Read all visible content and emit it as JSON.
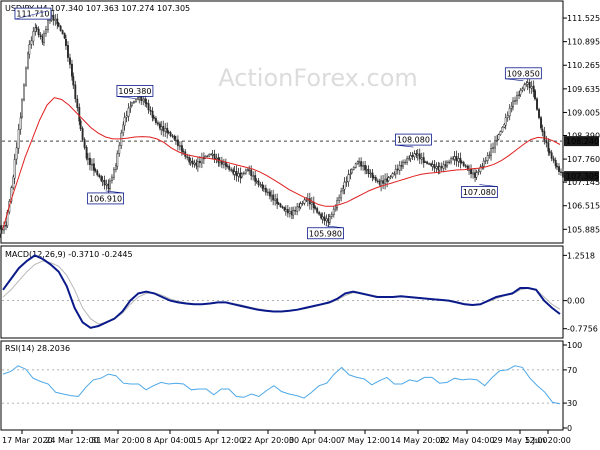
{
  "watermark": "ActionForex.com",
  "chart_data": [
    {
      "type": "candlestick",
      "title": "USDJPY,H4  107.340 107.363 107.274 107.305",
      "ylim": [
        105.6,
        111.9
      ],
      "y_ticks": [
        111.525,
        110.895,
        110.265,
        109.635,
        109.005,
        108.39,
        107.76,
        107.145,
        106.515,
        105.885
      ],
      "y_tick_labels": [
        "111.525",
        "110.895",
        "110.265",
        "109.635",
        "109.005",
        "108.390",
        "107.760",
        "107.145",
        "106.515",
        "105.885"
      ],
      "highlight_labels": [
        "108.240",
        "107.305"
      ],
      "reference_level": 108.24,
      "last_price": 107.305,
      "close": [
        106.0,
        107.3,
        108.9,
        110.6,
        111.3,
        110.9,
        111.6,
        111.4,
        111.0,
        110.0,
        108.8,
        107.8,
        107.5,
        107.2,
        107.0,
        107.6,
        108.7,
        109.2,
        109.4,
        109.3,
        108.9,
        108.6,
        108.5,
        108.3,
        108.0,
        107.7,
        107.6,
        107.8,
        107.9,
        107.7,
        107.6,
        107.4,
        107.3,
        107.5,
        107.2,
        107.0,
        106.8,
        106.6,
        106.4,
        106.3,
        106.5,
        106.7,
        106.5,
        106.2,
        106.1,
        106.5,
        107.0,
        107.4,
        107.7,
        107.5,
        107.3,
        107.1,
        107.2,
        107.4,
        107.6,
        107.8,
        107.9,
        107.7,
        107.6,
        107.5,
        107.6,
        107.8,
        107.7,
        107.5,
        107.3,
        107.6,
        107.9,
        108.3,
        108.7,
        109.2,
        109.5,
        109.8,
        109.6,
        108.6,
        108.0,
        107.6,
        107.3
      ],
      "ma": [
        105.9,
        106.6,
        107.2,
        107.8,
        108.3,
        108.8,
        109.2,
        109.4,
        109.35,
        109.2,
        109.0,
        108.8,
        108.6,
        108.45,
        108.35,
        108.3,
        108.3,
        108.32,
        108.35,
        108.36,
        108.35,
        108.3,
        108.2,
        108.05,
        107.95,
        107.88,
        107.84,
        107.8,
        107.78,
        107.75,
        107.7,
        107.65,
        107.6,
        107.55,
        107.5,
        107.42,
        107.32,
        107.2,
        107.08,
        106.95,
        106.85,
        106.75,
        106.65,
        106.55,
        106.5,
        106.5,
        106.55,
        106.62,
        106.72,
        106.82,
        106.92,
        107.0,
        107.06,
        107.12,
        107.18,
        107.24,
        107.3,
        107.35,
        107.38,
        107.4,
        107.42,
        107.45,
        107.47,
        107.48,
        107.5,
        107.52,
        107.56,
        107.62,
        107.72,
        107.85,
        108.0,
        108.15,
        108.28,
        108.34,
        108.32,
        108.25,
        108.15
      ],
      "annotations": [
        {
          "text": "111.710",
          "price": 111.71,
          "index": 6
        },
        {
          "text": "109.380",
          "price": 109.38,
          "index": 18
        },
        {
          "text": "106.910",
          "price": 106.91,
          "index": 14
        },
        {
          "text": "105.980",
          "price": 105.98,
          "index": 44
        },
        {
          "text": "108.080",
          "price": 108.08,
          "index": 56
        },
        {
          "text": "107.080",
          "price": 107.08,
          "index": 65
        },
        {
          "text": "109.850",
          "price": 109.85,
          "index": 71
        }
      ]
    },
    {
      "type": "line",
      "title": "MACD(12,26,9)  -0.3710  -0.2445",
      "ylim": [
        -0.95,
        1.4
      ],
      "y_ticks": [
        1.2518,
        0.0,
        -0.7756
      ],
      "y_tick_labels": [
        "1.2518",
        "0.00",
        "-0.7756"
      ],
      "series": [
        {
          "values": [
            0.3,
            0.6,
            0.9,
            1.1,
            1.25,
            1.15,
            1.0,
            0.8,
            0.4,
            -0.2,
            -0.6,
            -0.75,
            -0.7,
            -0.6,
            -0.5,
            -0.3,
            0.0,
            0.2,
            0.25,
            0.2,
            0.1,
            0.0,
            -0.05,
            -0.08,
            -0.1,
            -0.1,
            -0.08,
            -0.05,
            -0.05,
            -0.1,
            -0.15,
            -0.2,
            -0.25,
            -0.28,
            -0.3,
            -0.3,
            -0.28,
            -0.25,
            -0.2,
            -0.15,
            -0.1,
            -0.05,
            0.05,
            0.2,
            0.25,
            0.2,
            0.15,
            0.1,
            0.1,
            0.1,
            0.12,
            0.1,
            0.08,
            0.06,
            0.04,
            0.02,
            0.0,
            -0.05,
            -0.1,
            -0.12,
            -0.1,
            0.0,
            0.1,
            0.15,
            0.2,
            0.35,
            0.35,
            0.3,
            0.0,
            -0.2,
            -0.37
          ]
        },
        {
          "values": [
            0.1,
            0.3,
            0.55,
            0.8,
            1.0,
            1.1,
            1.05,
            0.95,
            0.7,
            0.3,
            -0.2,
            -0.5,
            -0.65,
            -0.6,
            -0.5,
            -0.35,
            -0.1,
            0.1,
            0.2,
            0.22,
            0.15,
            0.05,
            -0.02,
            -0.06,
            -0.09,
            -0.1,
            -0.09,
            -0.06,
            -0.05,
            -0.08,
            -0.12,
            -0.18,
            -0.22,
            -0.26,
            -0.29,
            -0.3,
            -0.29,
            -0.26,
            -0.22,
            -0.17,
            -0.12,
            -0.07,
            0.02,
            0.14,
            0.22,
            0.21,
            0.17,
            0.12,
            0.11,
            0.1,
            0.11,
            0.1,
            0.09,
            0.07,
            0.05,
            0.03,
            0.01,
            -0.03,
            -0.08,
            -0.11,
            -0.1,
            -0.03,
            0.06,
            0.13,
            0.18,
            0.3,
            0.34,
            0.31,
            0.1,
            -0.1,
            -0.24
          ]
        }
      ]
    },
    {
      "type": "line",
      "title": "RSI(14)  28.2036",
      "ylim": [
        0,
        100
      ],
      "y_ticks": [
        100,
        70,
        30,
        0
      ],
      "y_tick_labels": [
        "100",
        "70",
        "30",
        "0"
      ],
      "series": [
        {
          "values": [
            62,
            70,
            74,
            68,
            62,
            55,
            50,
            45,
            40,
            36,
            40,
            48,
            55,
            62,
            64,
            60,
            56,
            52,
            50,
            48,
            50,
            52,
            55,
            53,
            50,
            48,
            46,
            44,
            42,
            46,
            44,
            40,
            36,
            38,
            40,
            44,
            48,
            46,
            40,
            36,
            38,
            42,
            48,
            56,
            64,
            70,
            66,
            60,
            56,
            54,
            56,
            58,
            55,
            52,
            55,
            58,
            60,
            58,
            56,
            54,
            57,
            60,
            58,
            55,
            53,
            60,
            66,
            72,
            74,
            70,
            62,
            50,
            40,
            33,
            28
          ]
        }
      ]
    }
  ],
  "x_axis": {
    "labels": [
      "17 Mar 2020",
      "24 Mar 12:00",
      "31 Mar 20:00",
      "8 Apr 04:00",
      "15 Apr 12:00",
      "22 Apr 20:00",
      "30 Apr 04:00",
      "7 May 12:00",
      "14 May 20:00",
      "22 May 04:00",
      "29 May 12:00",
      "5 Jun 20:00"
    ]
  },
  "colors": {
    "candle": "#2a2a2a",
    "ma": "#e02020",
    "macd": "#0b1a8a",
    "signal": "#b8b8b8",
    "rsi": "#4da8e8",
    "highlight_label_bg": "#1a1a1a",
    "annotation_border": "#0b1a8a"
  }
}
